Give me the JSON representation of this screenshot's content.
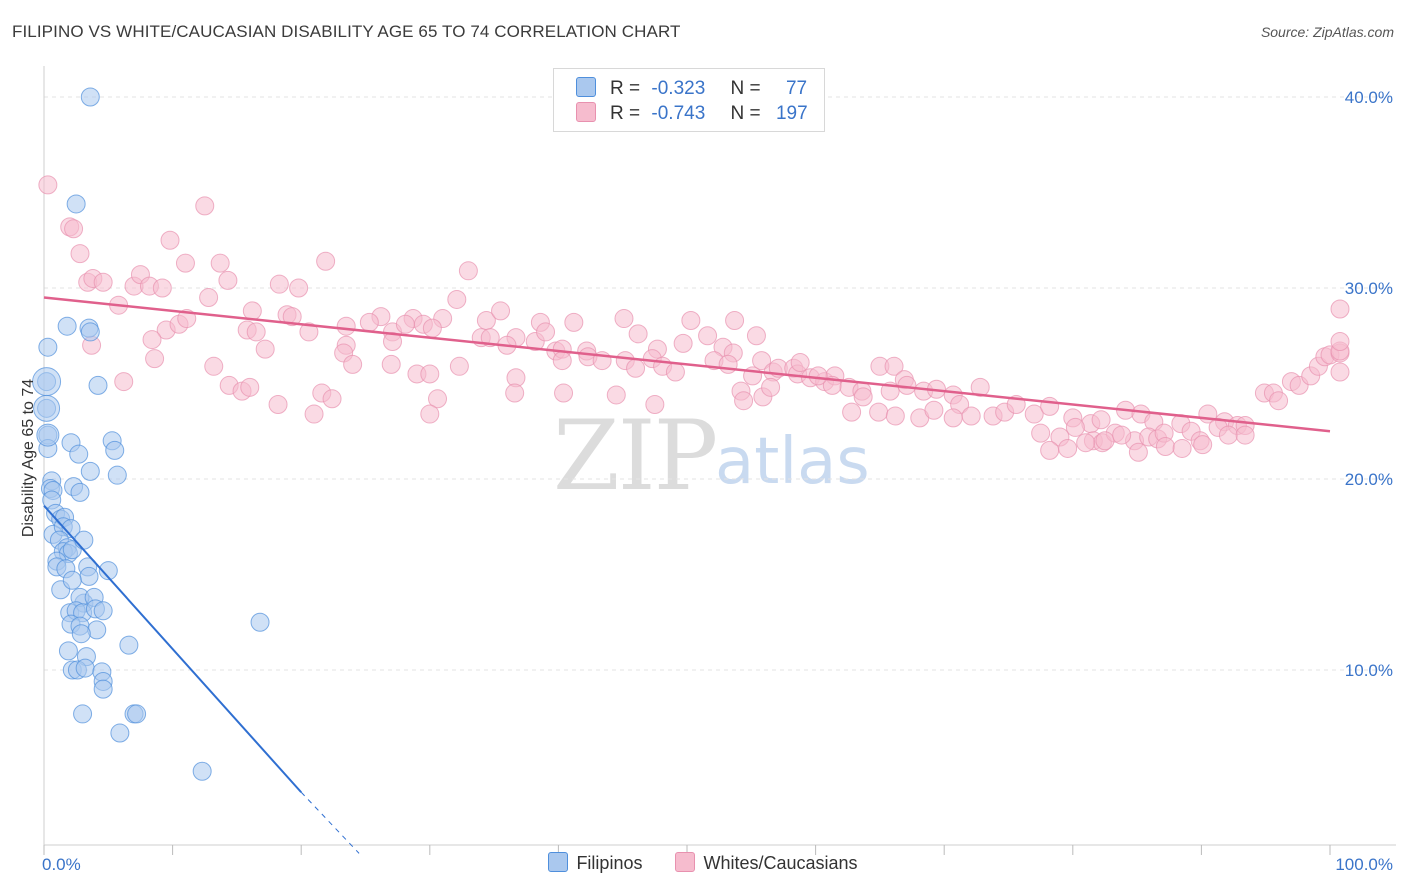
{
  "title": "FILIPINO VS WHITE/CAUCASIAN DISABILITY AGE 65 TO 74 CORRELATION CHART",
  "source": "Source: ZipAtlas.com",
  "watermark": {
    "zip": "ZIP",
    "atlas": "atlas"
  },
  "legend": {
    "rows": [
      {
        "r_label": "R =",
        "r_value": "-0.323",
        "n_label": "N =",
        "n_value": "77",
        "color": "#aac8ee"
      },
      {
        "r_label": "R =",
        "r_value": "-0.743",
        "n_label": "N =",
        "n_value": "197",
        "color": "#f6bcce"
      }
    ]
  },
  "bottom_legend": [
    {
      "label": "Filipinos",
      "color": "#aac8ee"
    },
    {
      "label": "Whites/Caucasians",
      "color": "#f6bcce"
    }
  ],
  "chart_data": {
    "type": "scatter",
    "title": "FILIPINO VS WHITE/CAUCASIAN DISABILITY AGE 65 TO 74 CORRELATION CHART",
    "xlabel": "",
    "ylabel": "Disability Age 65 to 74",
    "xlim": [
      0,
      100
    ],
    "ylim": [
      0,
      40.5
    ],
    "x_tick_labels": [
      "0.0%",
      "100.0%"
    ],
    "y_ticks": [
      10,
      20,
      30,
      40
    ],
    "y_tick_labels": [
      "10.0%",
      "20.0%",
      "30.0%",
      "40.0%"
    ],
    "grid": true,
    "series": [
      {
        "name": "Filipinos",
        "color": "#4f8fdc",
        "fill": "#aac8ee",
        "trend": {
          "x": [
            0.0,
            20.0
          ],
          "y": [
            18.6,
            3.6
          ],
          "dashed_to": [
            24.5,
            0.4
          ],
          "color": "#2f6fd1"
        },
        "points": [
          [
            3.6,
            40
          ],
          [
            2.5,
            34.4
          ],
          [
            0.3,
            26.9
          ],
          [
            1.8,
            28
          ],
          [
            3.5,
            27.9
          ],
          [
            3.6,
            27.7
          ],
          [
            4.2,
            24.9
          ],
          [
            0.2,
            25.1
          ],
          [
            0.2,
            23.7
          ],
          [
            0.3,
            22.3
          ],
          [
            0.3,
            21.6
          ],
          [
            2.1,
            21.9
          ],
          [
            2.7,
            21.3
          ],
          [
            5.3,
            22
          ],
          [
            5.5,
            21.5
          ],
          [
            0.6,
            19.9
          ],
          [
            0.5,
            19.5
          ],
          [
            0.7,
            19.4
          ],
          [
            2.3,
            19.6
          ],
          [
            2.8,
            19.3
          ],
          [
            3.6,
            20.4
          ],
          [
            5.7,
            20.2
          ],
          [
            0.6,
            18.9
          ],
          [
            0.9,
            18.2
          ],
          [
            1.3,
            17.9
          ],
          [
            1.6,
            18
          ],
          [
            0.7,
            17.1
          ],
          [
            1.5,
            17.5
          ],
          [
            2.1,
            17.4
          ],
          [
            1.2,
            16.8
          ],
          [
            1.8,
            16.4
          ],
          [
            1.5,
            16.2
          ],
          [
            1.9,
            16.1
          ],
          [
            2.2,
            16.3
          ],
          [
            3.1,
            16.8
          ],
          [
            1,
            15.7
          ],
          [
            1,
            15.4
          ],
          [
            1.7,
            15.3
          ],
          [
            3.4,
            15.4
          ],
          [
            3.5,
            14.9
          ],
          [
            5,
            15.2
          ],
          [
            1.3,
            14.2
          ],
          [
            2.2,
            14.7
          ],
          [
            3.1,
            13.5
          ],
          [
            2.8,
            13.8
          ],
          [
            3.9,
            13.8
          ],
          [
            2,
            13
          ],
          [
            2.5,
            13.1
          ],
          [
            3,
            13
          ],
          [
            4,
            13.2
          ],
          [
            4.6,
            13.1
          ],
          [
            2.1,
            12.4
          ],
          [
            2.8,
            12.3
          ],
          [
            4.1,
            12.1
          ],
          [
            2.9,
            11.9
          ],
          [
            1.9,
            11
          ],
          [
            3.3,
            10.7
          ],
          [
            6.6,
            11.3
          ],
          [
            2.2,
            10
          ],
          [
            2.6,
            10
          ],
          [
            3.2,
            10.1
          ],
          [
            4.5,
            9.9
          ],
          [
            4.6,
            9.4
          ],
          [
            4.6,
            9
          ],
          [
            3,
            7.7
          ],
          [
            7,
            7.7
          ],
          [
            7.2,
            7.7
          ],
          [
            5.9,
            6.7
          ],
          [
            12.3,
            4.7
          ],
          [
            16.8,
            12.5
          ]
        ]
      },
      {
        "name": "Whites/Caucasians",
        "color": "#e891af",
        "fill": "#f6bcce",
        "trend": {
          "x": [
            0.0,
            100.0
          ],
          "y": [
            29.5,
            22.5
          ],
          "color": "#e0608c"
        },
        "points": [
          [
            0.3,
            35.4
          ],
          [
            2,
            33.2
          ],
          [
            2.3,
            33.1
          ],
          [
            2.8,
            31.8
          ],
          [
            12.5,
            34.3
          ],
          [
            9.8,
            32.5
          ],
          [
            11,
            31.3
          ],
          [
            13.7,
            31.3
          ],
          [
            21.9,
            31.4
          ],
          [
            33,
            30.9
          ],
          [
            3.4,
            30.3
          ],
          [
            3.8,
            30.5
          ],
          [
            4.6,
            30.3
          ],
          [
            7,
            30.1
          ],
          [
            7.5,
            30.7
          ],
          [
            8.2,
            30.1
          ],
          [
            9.2,
            30
          ],
          [
            14.3,
            30.4
          ],
          [
            18.3,
            30.2
          ],
          [
            19.8,
            30
          ],
          [
            5.8,
            29.1
          ],
          [
            12.8,
            29.5
          ],
          [
            16.2,
            28.8
          ],
          [
            18.9,
            28.6
          ],
          [
            19.3,
            28.5
          ],
          [
            26.2,
            28.5
          ],
          [
            28.7,
            28.4
          ],
          [
            31,
            28.4
          ],
          [
            32.1,
            29.4
          ],
          [
            34.4,
            28.3
          ],
          [
            35.5,
            28.8
          ],
          [
            38.6,
            28.2
          ],
          [
            41.2,
            28.2
          ],
          [
            9.5,
            27.8
          ],
          [
            10.5,
            28.1
          ],
          [
            11.1,
            28.4
          ],
          [
            15.8,
            27.8
          ],
          [
            20.6,
            27.7
          ],
          [
            23.5,
            28
          ],
          [
            25.3,
            28.2
          ],
          [
            27.1,
            27.7
          ],
          [
            28.1,
            28.1
          ],
          [
            29.5,
            28.1
          ],
          [
            30.2,
            27.9
          ],
          [
            34,
            27.4
          ],
          [
            36.7,
            27.4
          ],
          [
            38.2,
            27.2
          ],
          [
            39,
            27.7
          ],
          [
            45.1,
            28.4
          ],
          [
            46.2,
            27.6
          ],
          [
            50.3,
            28.3
          ],
          [
            51.6,
            27.5
          ],
          [
            53.7,
            28.3
          ],
          [
            55.4,
            27.5
          ],
          [
            3.7,
            27
          ],
          [
            8.4,
            27.3
          ],
          [
            16.5,
            27.7
          ],
          [
            17.2,
            26.8
          ],
          [
            23.5,
            27
          ],
          [
            27.1,
            27.2
          ],
          [
            34.7,
            27.4
          ],
          [
            36,
            27
          ],
          [
            39.8,
            26.7
          ],
          [
            40.3,
            26.8
          ],
          [
            42.2,
            26.7
          ],
          [
            47.7,
            26.8
          ],
          [
            49.7,
            27.1
          ],
          [
            52.8,
            26.9
          ],
          [
            53.6,
            26.6
          ],
          [
            6.2,
            25.1
          ],
          [
            8.6,
            26.3
          ],
          [
            13.2,
            25.9
          ],
          [
            23.3,
            26.6
          ],
          [
            24,
            26
          ],
          [
            27,
            26
          ],
          [
            29,
            25.5
          ],
          [
            30,
            25.5
          ],
          [
            32.3,
            25.9
          ],
          [
            36.7,
            25.3
          ],
          [
            40.3,
            26.2
          ],
          [
            42.3,
            26.4
          ],
          [
            43.4,
            26.2
          ],
          [
            45.2,
            26.2
          ],
          [
            46,
            25.8
          ],
          [
            47.3,
            26.3
          ],
          [
            48.1,
            25.9
          ],
          [
            49.1,
            25.6
          ],
          [
            52.1,
            26.2
          ],
          [
            53.2,
            26
          ],
          [
            55.8,
            26.2
          ],
          [
            56.7,
            25.6
          ],
          [
            57.1,
            25.8
          ],
          [
            58.3,
            25.8
          ],
          [
            58.6,
            25.5
          ],
          [
            59.6,
            25.3
          ],
          [
            60.7,
            25.1
          ],
          [
            61.5,
            25.4
          ],
          [
            65,
            25.9
          ],
          [
            66.1,
            25.9
          ],
          [
            66.9,
            25.2
          ],
          [
            14.4,
            24.9
          ],
          [
            15.4,
            24.6
          ],
          [
            16,
            24.8
          ],
          [
            21.6,
            24.5
          ],
          [
            22.4,
            24.2
          ],
          [
            30.6,
            24.2
          ],
          [
            36.6,
            24.5
          ],
          [
            40.4,
            24.5
          ],
          [
            54.2,
            24.6
          ],
          [
            54.4,
            24.1
          ],
          [
            55.9,
            24.3
          ],
          [
            56.5,
            24.8
          ],
          [
            61.3,
            24.9
          ],
          [
            62.6,
            24.8
          ],
          [
            63.6,
            24.6
          ],
          [
            63.7,
            24.3
          ],
          [
            68.4,
            24.6
          ],
          [
            69.4,
            24.7
          ],
          [
            70.7,
            24.4
          ],
          [
            71.2,
            23.9
          ],
          [
            72.8,
            24.8
          ],
          [
            18.2,
            23.9
          ],
          [
            21,
            23.4
          ],
          [
            30,
            23.4
          ],
          [
            62.8,
            23.5
          ],
          [
            64.9,
            23.5
          ],
          [
            66.2,
            23.3
          ],
          [
            68.1,
            23.2
          ],
          [
            69.2,
            23.6
          ],
          [
            70.7,
            23.2
          ],
          [
            72.1,
            23.3
          ],
          [
            73.8,
            23.3
          ],
          [
            74.7,
            23.5
          ],
          [
            75.6,
            23.9
          ],
          [
            77,
            23.4
          ],
          [
            78.2,
            23.8
          ],
          [
            80,
            23.2
          ],
          [
            81.4,
            22.9
          ],
          [
            82.2,
            23.1
          ],
          [
            84.1,
            23.6
          ],
          [
            85.3,
            23.4
          ],
          [
            86.3,
            23
          ],
          [
            88.4,
            22.9
          ],
          [
            90.5,
            23.4
          ],
          [
            91.8,
            23
          ],
          [
            92.8,
            22.8
          ],
          [
            93.4,
            22.8
          ],
          [
            94.9,
            24.5
          ],
          [
            95.6,
            24.5
          ],
          [
            96,
            24.1
          ],
          [
            77.5,
            22.4
          ],
          [
            79,
            22.2
          ],
          [
            80.2,
            22.7
          ],
          [
            81.6,
            22
          ],
          [
            82.3,
            21.9
          ],
          [
            83.3,
            22.4
          ],
          [
            84.8,
            22
          ],
          [
            85.9,
            22.2
          ],
          [
            86.6,
            22.1
          ],
          [
            87.1,
            22.4
          ],
          [
            89.2,
            22.5
          ],
          [
            89.9,
            22
          ],
          [
            91.3,
            22.7
          ],
          [
            92.1,
            22.3
          ],
          [
            93.4,
            22.3
          ],
          [
            78.2,
            21.5
          ],
          [
            79.6,
            21.6
          ],
          [
            81,
            21.9
          ],
          [
            82.5,
            22
          ],
          [
            83.8,
            22.3
          ],
          [
            85.1,
            21.4
          ],
          [
            87.2,
            21.7
          ],
          [
            88.5,
            21.6
          ],
          [
            90.1,
            21.8
          ],
          [
            97,
            25.1
          ],
          [
            97.6,
            24.9
          ],
          [
            98.5,
            25.4
          ],
          [
            99.1,
            25.9
          ],
          [
            99.6,
            26.4
          ],
          [
            100,
            26.5
          ],
          [
            101.2,
            26.6
          ],
          [
            101.6,
            25.6
          ],
          [
            102.1,
            26.7
          ],
          [
            103.3,
            27.2
          ],
          [
            104.2,
            28.9
          ],
          [
            58.8,
            26.1
          ],
          [
            60.2,
            25.4
          ],
          [
            65.8,
            24.6
          ],
          [
            67.1,
            24.9
          ],
          [
            55.1,
            25.4
          ],
          [
            47.5,
            23.9
          ],
          [
            44.5,
            24.4
          ]
        ]
      }
    ]
  }
}
